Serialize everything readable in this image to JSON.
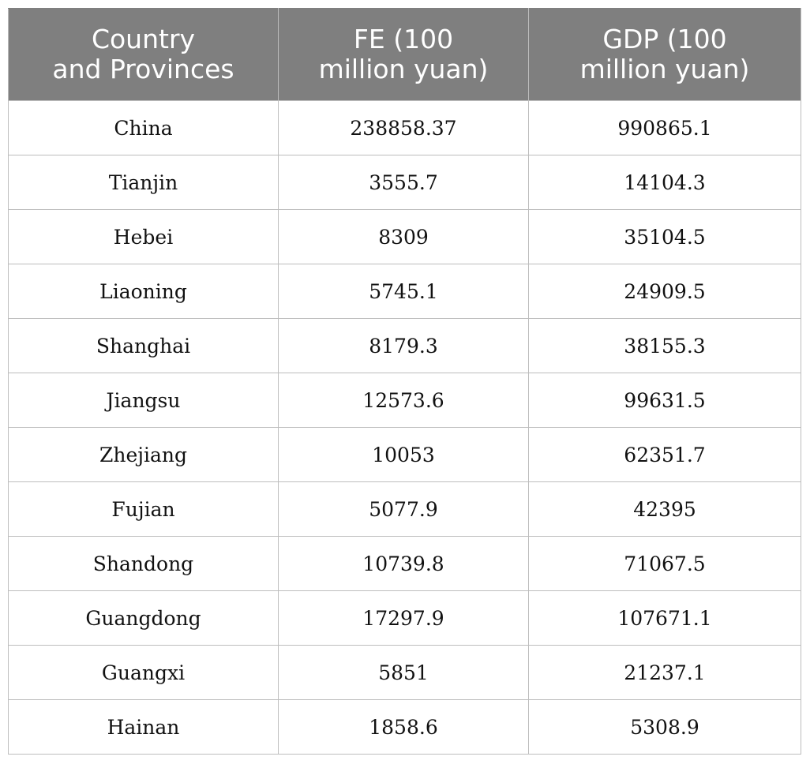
{
  "table": {
    "headers": [
      "Country\nand Provinces",
      "FE (100\nmillion yuan)",
      "GDP (100\nmillion yuan)"
    ],
    "rows": [
      [
        "China",
        "238858.37",
        "990865.1"
      ],
      [
        "Tianjin",
        "3555.7",
        "14104.3"
      ],
      [
        "Hebei",
        "8309",
        "35104.5"
      ],
      [
        "Liaoning",
        "5745.1",
        "24909.5"
      ],
      [
        "Shanghai",
        "8179.3",
        "38155.3"
      ],
      [
        "Jiangsu",
        "12573.6",
        "99631.5"
      ],
      [
        "Zhejiang",
        "10053",
        "62351.7"
      ],
      [
        "Fujian",
        "5077.9",
        "42395"
      ],
      [
        "Shandong",
        "10739.8",
        "71067.5"
      ],
      [
        "Guangdong",
        "17297.9",
        "107671.1"
      ],
      [
        "Guangxi",
        "5851",
        "21237.1"
      ],
      [
        "Hainan",
        "1858.6",
        "5308.9"
      ]
    ]
  },
  "colors": {
    "header_bg": "#7f7f7f",
    "header_text": "#ffffff",
    "grid": "#bdbdbd"
  }
}
